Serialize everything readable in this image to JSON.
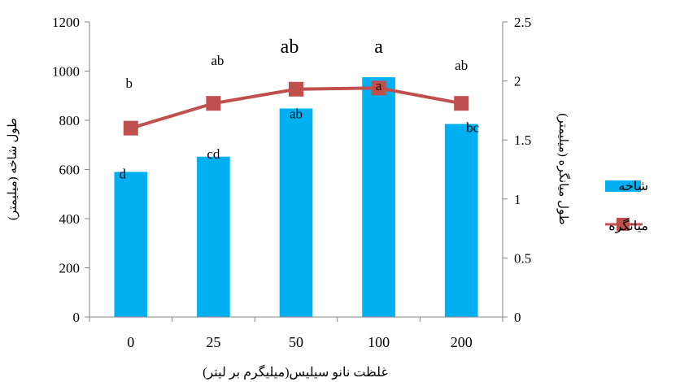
{
  "chart_data": {
    "type": "bar",
    "categories": [
      "0",
      "25",
      "50",
      "100",
      "200"
    ],
    "series": [
      {
        "name": "شاخه",
        "kind": "bar",
        "axis": "left",
        "color": "#00B0F0",
        "values": [
          590,
          652,
          848,
          975,
          785
        ]
      },
      {
        "name": "میانگره",
        "kind": "line",
        "axis": "right",
        "color": "#C0504D",
        "values": [
          1.6,
          1.81,
          1.93,
          1.94,
          1.81
        ]
      }
    ],
    "bar_labels": [
      "d",
      "cd",
      "ab",
      "a",
      "bc"
    ],
    "line_labels": [
      "b",
      "ab",
      "ab",
      "a",
      "ab"
    ],
    "xlabel": "غلظت نانو سیلیس(میلیگرم بر لیتر)",
    "ylabel_left": "طول شاخه (میلیمتر)",
    "ylabel_right": "طول میانگره (میلیمتر)",
    "ylim_left": [
      0,
      1200
    ],
    "ylim_right": [
      0,
      2.5
    ],
    "yticks_left": [
      "0",
      "200",
      "400",
      "600",
      "800",
      "1000",
      "1200"
    ],
    "yticks_right": [
      "0",
      "0.5",
      "1",
      "1.5",
      "2",
      "2.5"
    ],
    "grid": false,
    "legend_position": "right"
  }
}
